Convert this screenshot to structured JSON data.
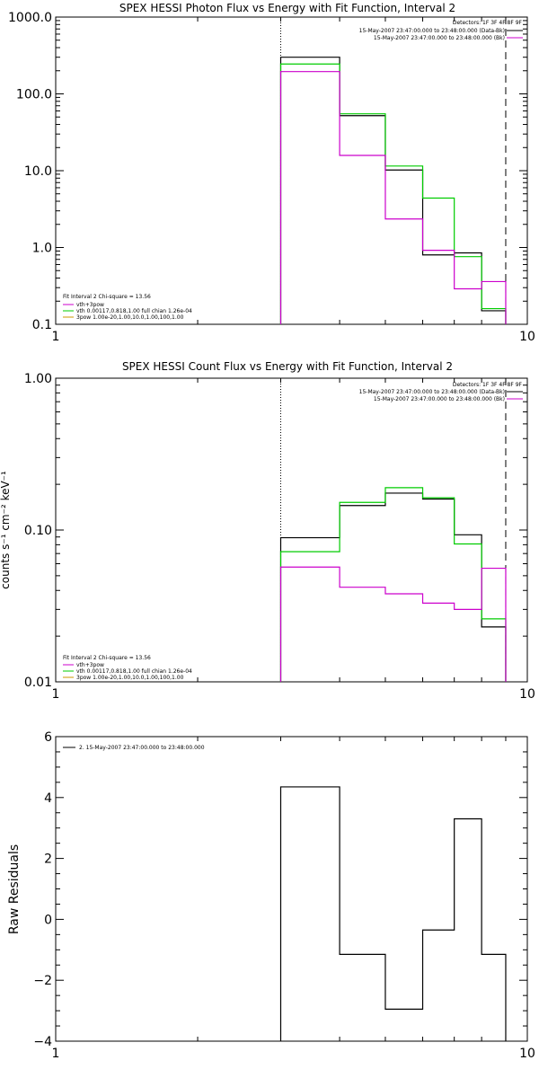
{
  "chart_data": [
    {
      "type": "line",
      "title": "SPEX HESSI Photon Flux vs Energy with Fit Function, Interval 2",
      "xlabel": "",
      "ylabel": "",
      "x_scale": "log",
      "y_scale": "log",
      "xlim": [
        1,
        10
      ],
      "ylim": [
        0.1,
        1000.0
      ],
      "x_ticks": [
        "1",
        "10"
      ],
      "y_ticks": [
        "0.1",
        "1.0",
        "10.0",
        "100.0",
        "1000.0"
      ],
      "bin_edges": [
        3.0,
        4.0,
        5.0,
        6.0,
        7.0,
        8.0,
        9.0
      ],
      "series": [
        {
          "legend_key": "data",
          "color": "#000000",
          "values": [
            300,
            52,
            10.2,
            0.8,
            0.85,
            0.15
          ]
        },
        {
          "legend_key": "model",
          "color": "#00cc00",
          "values": [
            245,
            55,
            11.5,
            4.4,
            0.76,
            0.16
          ]
        },
        {
          "legend_key": "bk",
          "color": "#cc00cc",
          "values": [
            195,
            15.8,
            2.35,
            0.92,
            0.29,
            0.36
          ]
        }
      ],
      "vlines": [
        {
          "x": 3.0,
          "style": "dotted"
        },
        {
          "x": 9.0,
          "style": "dashed"
        }
      ],
      "legend_tr": {
        "line1": "Detectors: 1F 3F 4F 8F 9F",
        "line2": "15-May-2007 23:47:00.000 to 23:48:00.000 (Data-Bk)",
        "line3": "15-May-2007 23:47:00.000 to 23:48:00.000 (Bk)"
      },
      "legend_bl": {
        "header": "Fit Interval 2   Chi-square = 13.56",
        "entries": [
          {
            "text": "vth+3pow",
            "color": "#cc00cc"
          },
          {
            "text": "vth 0.00117,0.818,1.00   full chian 1.26e-04",
            "color": "#00cc00"
          },
          {
            "text": "3pow 1.00e-20,1.00,10.0,1.00,100,1.00",
            "color": "#cc9900"
          }
        ]
      }
    },
    {
      "type": "line",
      "title": "SPEX HESSI Count Flux vs Energy with Fit Function, Interval 2",
      "xlabel": "",
      "ylabel": "counts s⁻¹ cm⁻² keV⁻¹",
      "x_scale": "log",
      "y_scale": "log",
      "xlim": [
        1,
        10
      ],
      "ylim": [
        0.01,
        1.0
      ],
      "x_ticks": [
        "1",
        "10"
      ],
      "y_ticks": [
        "0.01",
        "0.10",
        "1.00"
      ],
      "bin_edges": [
        3.0,
        4.0,
        5.0,
        6.0,
        7.0,
        8.0,
        9.0
      ],
      "series": [
        {
          "legend_key": "data",
          "color": "#000000",
          "values": [
            0.089,
            0.145,
            0.175,
            0.16,
            0.093,
            0.023
          ]
        },
        {
          "legend_key": "model",
          "color": "#00cc00",
          "values": [
            0.072,
            0.152,
            0.19,
            0.163,
            0.081,
            0.026
          ]
        },
        {
          "legend_key": "bk",
          "color": "#cc00cc",
          "values": [
            0.057,
            0.042,
            0.038,
            0.033,
            0.03,
            0.056
          ]
        }
      ],
      "vlines": [
        {
          "x": 3.0,
          "style": "dotted"
        },
        {
          "x": 9.0,
          "style": "dashed"
        }
      ],
      "legend_tr": {
        "line1": "Detectors: 1F 3F 4F 8F 9F",
        "line2": "15-May-2007 23:47:00.000 to 23:48:00.000 (Data-Bk)",
        "line3": "15-May-2007 23:47:00.000 to 23:48:00.000 (Bk)"
      },
      "legend_bl": {
        "header": "Fit Interval 2   Chi-square = 13.56",
        "entries": [
          {
            "text": "vth+3pow",
            "color": "#cc00cc"
          },
          {
            "text": "vth 0.00117,0.818,1.00   full chian 1.26e-04",
            "color": "#00cc00"
          },
          {
            "text": "3pow 1.00e-20,1.00,10.0,1.00,100,1.00",
            "color": "#cc9900"
          }
        ]
      }
    },
    {
      "type": "line",
      "title": "",
      "xlabel": "",
      "ylabel": "Raw Residuals",
      "x_scale": "log",
      "y_scale": "linear",
      "xlim": [
        1,
        10
      ],
      "ylim": [
        -4,
        6
      ],
      "x_ticks": [
        "1",
        "10"
      ],
      "y_ticks": [
        "−4",
        "−2",
        "0",
        "2",
        "4",
        "6"
      ],
      "bin_edges": [
        3.0,
        4.0,
        5.0,
        6.0,
        7.0,
        8.0,
        9.0
      ],
      "series": [
        {
          "legend_key": "resid",
          "color": "#000000",
          "values": [
            4.35,
            -1.15,
            -2.95,
            -0.35,
            3.3,
            -1.15
          ]
        }
      ],
      "legend_tl": {
        "text": "2. 15-May-2007 23:47:00.000 to 23:48:00.000"
      }
    }
  ]
}
